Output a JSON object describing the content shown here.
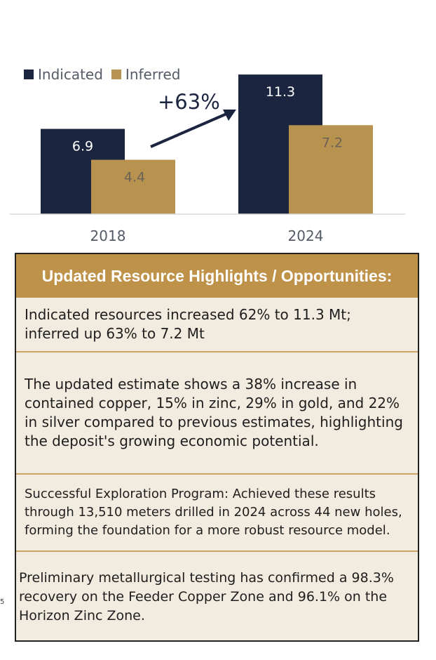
{
  "chart_data": {
    "type": "bar",
    "categories": [
      "2018",
      "2024"
    ],
    "series": [
      {
        "name": "Indicated",
        "values": [
          6.9,
          11.3
        ],
        "color": "#1b2540"
      },
      {
        "name": "Inferred",
        "values": [
          4.4,
          7.2
        ],
        "color": "#b8924f"
      }
    ],
    "ylim": [
      0,
      12.5
    ],
    "annotation": "+63%",
    "legend_position": "top-left",
    "grid": false
  },
  "highlights": {
    "title": "Updated Resource Highlights / Opportunities:",
    "items": [
      "Indicated resources increased 62% to 11.3 Mt; inferred up 63% to 7.2 Mt",
      "The updated estimate shows a 38% increase in contained copper, 15% in zinc, 29% in gold, and 22% in silver compared to previous estimates, highlighting the deposit's growing economic potential.",
      "Successful Exploration Program: Achieved these results through 13,510 meters drilled in 2024 across 44 new holes, forming the foundation for a more robust resource model.",
      "Preliminary metallurgical testing has confirmed a 98.3% recovery on the Feeder Copper Zone and 96.1% on the Horizon Zinc Zone."
    ],
    "accent_color": "#bf924a",
    "panel_bg": "#f2ebe0"
  },
  "page_number": "5"
}
